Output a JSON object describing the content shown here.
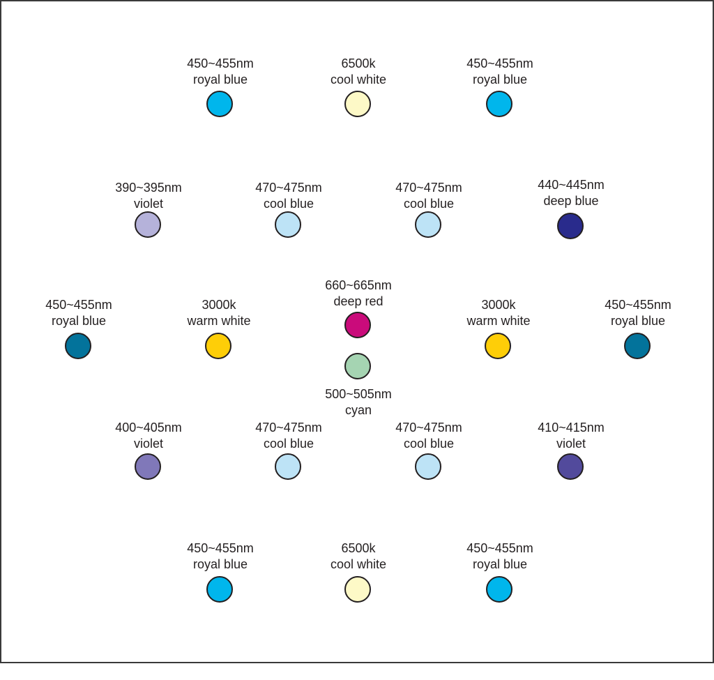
{
  "leds": [
    {
      "wavelength": "450~455nm",
      "name": "royal blue",
      "color": "#00b6ec"
    },
    {
      "wavelength": "6500k",
      "name": "cool white",
      "color": "#fdf9c7"
    },
    {
      "wavelength": "450~455nm",
      "name": "royal blue",
      "color": "#00b6ec"
    },
    {
      "wavelength": "390~395nm",
      "name": "violet",
      "color": "#b5b2da"
    },
    {
      "wavelength": "470~475nm",
      "name": "cool blue",
      "color": "#bde3f6"
    },
    {
      "wavelength": "470~475nm",
      "name": "cool blue",
      "color": "#bde3f6"
    },
    {
      "wavelength": "440~445nm",
      "name": "deep blue",
      "color": "#292b8c"
    },
    {
      "wavelength": "450~455nm",
      "name": "royal blue",
      "color": "#03739b"
    },
    {
      "wavelength": "3000k",
      "name": "warm white",
      "color": "#fece08"
    },
    {
      "wavelength": "660~665nm",
      "name": "deep red",
      "color": "#ca0b7b"
    },
    {
      "wavelength": "3000k",
      "name": "warm white",
      "color": "#fece08"
    },
    {
      "wavelength": "450~455nm",
      "name": "royal blue",
      "color": "#03739b"
    },
    {
      "wavelength": "500~505nm",
      "name": "cyan",
      "color": "#a5d4b2"
    },
    {
      "wavelength": "400~405nm",
      "name": "violet",
      "color": "#8078b9"
    },
    {
      "wavelength": "470~475nm",
      "name": "cool blue",
      "color": "#bde3f6"
    },
    {
      "wavelength": "470~475nm",
      "name": "cool blue",
      "color": "#bde3f6"
    },
    {
      "wavelength": "410~415nm",
      "name": "violet",
      "color": "#524a9c"
    },
    {
      "wavelength": "450~455nm",
      "name": "royal blue",
      "color": "#00b6ec"
    },
    {
      "wavelength": "6500k",
      "name": "cool white",
      "color": "#fdf9c7"
    },
    {
      "wavelength": "450~455nm",
      "name": "royal blue",
      "color": "#00b6ec"
    }
  ]
}
